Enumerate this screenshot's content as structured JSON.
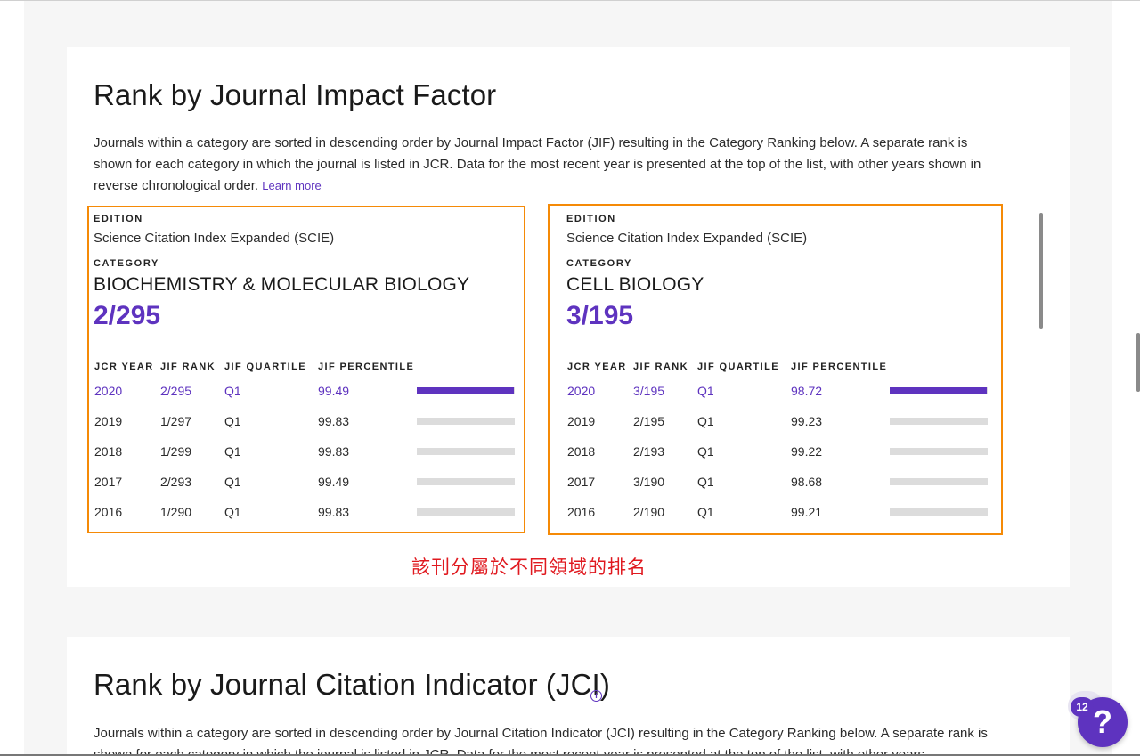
{
  "jif_section": {
    "title": "Rank by Journal Impact Factor",
    "description": "Journals within a category are sorted in descending order by Journal Impact Factor (JIF) resulting in the Category Ranking below. A separate rank is shown for each category in which the journal is listed in JCR. Data for the most recent year is presented at the top of the list, with other years shown in reverse chronological order.",
    "learn_more": "Learn more",
    "edition_label": "EDITION",
    "category_label": "CATEGORY",
    "columns": [
      "JCR YEAR",
      "JIF RANK",
      "JIF QUARTILE",
      "JIF PERCENTILE"
    ],
    "categories": [
      {
        "edition": "Science Citation Index Expanded (SCIE)",
        "name": "BIOCHEMISTRY & MOLECULAR BIOLOGY",
        "rank": "2/295",
        "rows": [
          {
            "year": "2020",
            "rank": "2/295",
            "quartile": "Q1",
            "percentile": "99.49",
            "pct": 99.49
          },
          {
            "year": "2019",
            "rank": "1/297",
            "quartile": "Q1",
            "percentile": "99.83",
            "pct": 99.83
          },
          {
            "year": "2018",
            "rank": "1/299",
            "quartile": "Q1",
            "percentile": "99.83",
            "pct": 99.83
          },
          {
            "year": "2017",
            "rank": "2/293",
            "quartile": "Q1",
            "percentile": "99.49",
            "pct": 99.49
          },
          {
            "year": "2016",
            "rank": "1/290",
            "quartile": "Q1",
            "percentile": "99.83",
            "pct": 99.83
          }
        ]
      },
      {
        "edition": "Science Citation Index Expanded (SCIE)",
        "name": "CELL BIOLOGY",
        "rank": "3/195",
        "rows": [
          {
            "year": "2020",
            "rank": "3/195",
            "quartile": "Q1",
            "percentile": "98.72",
            "pct": 98.72
          },
          {
            "year": "2019",
            "rank": "2/195",
            "quartile": "Q1",
            "percentile": "99.23",
            "pct": 99.23
          },
          {
            "year": "2018",
            "rank": "2/193",
            "quartile": "Q1",
            "percentile": "99.22",
            "pct": 99.22
          },
          {
            "year": "2017",
            "rank": "3/190",
            "quartile": "Q1",
            "percentile": "98.68",
            "pct": 98.68
          },
          {
            "year": "2016",
            "rank": "2/190",
            "quartile": "Q1",
            "percentile": "99.21",
            "pct": 99.21
          }
        ]
      }
    ]
  },
  "annotation": "該刊分屬於不同領域的排名",
  "jci_section": {
    "title": "Rank by Journal Citation Indicator (JCI)",
    "description": "Journals within a category are sorted in descending order by Journal Citation Indicator (JCI) resulting in the Category Ranking below. A separate rank is shown for each category in which the journal is listed in JCR. Data for the most recent year is presented at the top of the list, with other years"
  },
  "help": {
    "count": "12",
    "symbol": "?",
    "icon": "question-icon"
  },
  "colors": {
    "accent": "#5e33bf",
    "highlight_box": "#f58a07",
    "annotation": "#e0191f",
    "bar_track": "#dcdcdc"
  }
}
